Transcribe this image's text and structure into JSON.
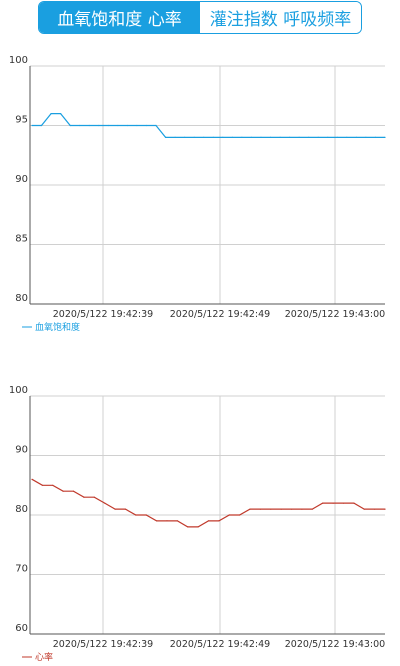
{
  "tabs": [
    {
      "label": "血氧饱和度 心率",
      "active": true
    },
    {
      "label": "灌注指数 呼吸频率",
      "active": false
    }
  ],
  "colors": {
    "accent": "#1a9fe0",
    "spo2_line": "#1a9fe0",
    "heart_rate_line": "#c0392b",
    "grid": "#d0d0d0",
    "axis_text": "#333333"
  },
  "chart_data": [
    {
      "type": "line",
      "title": "",
      "xlabel": "",
      "ylabel": "",
      "ylim": [
        80,
        100
      ],
      "yticks": [
        "100",
        "95",
        "90",
        "85",
        "80"
      ],
      "xticks": [
        "2020/5/122 19:42:39",
        "2020/5/122 19:42:49",
        "2020/5/122 19:43:00"
      ],
      "grid": true,
      "legend": "bottom-left",
      "series": [
        {
          "name": "血氧饱和度",
          "color": "#1a9fe0",
          "values": [
            95,
            95,
            96,
            96,
            95,
            95,
            95,
            95,
            95,
            95,
            95,
            95,
            95,
            95,
            94,
            94,
            94,
            94,
            94,
            94,
            94,
            94,
            94,
            94,
            94,
            94,
            94,
            94,
            94,
            94,
            94,
            94,
            94,
            94,
            94,
            94,
            94,
            94
          ]
        }
      ]
    },
    {
      "type": "line",
      "title": "",
      "xlabel": "",
      "ylabel": "",
      "ylim": [
        60,
        100
      ],
      "yticks": [
        "100",
        "90",
        "80",
        "70",
        "60"
      ],
      "xticks": [
        "2020/5/122 19:42:39",
        "2020/5/122 19:42:49",
        "2020/5/122 19:43:00"
      ],
      "grid": true,
      "legend": "bottom-left",
      "series": [
        {
          "name": "心率",
          "color": "#c0392b",
          "values": [
            86,
            85,
            85,
            84,
            84,
            83,
            83,
            82,
            81,
            81,
            80,
            80,
            79,
            79,
            79,
            78,
            78,
            79,
            79,
            80,
            80,
            81,
            81,
            81,
            81,
            81,
            81,
            81,
            82,
            82,
            82,
            82,
            81,
            81,
            81
          ]
        }
      ]
    }
  ]
}
